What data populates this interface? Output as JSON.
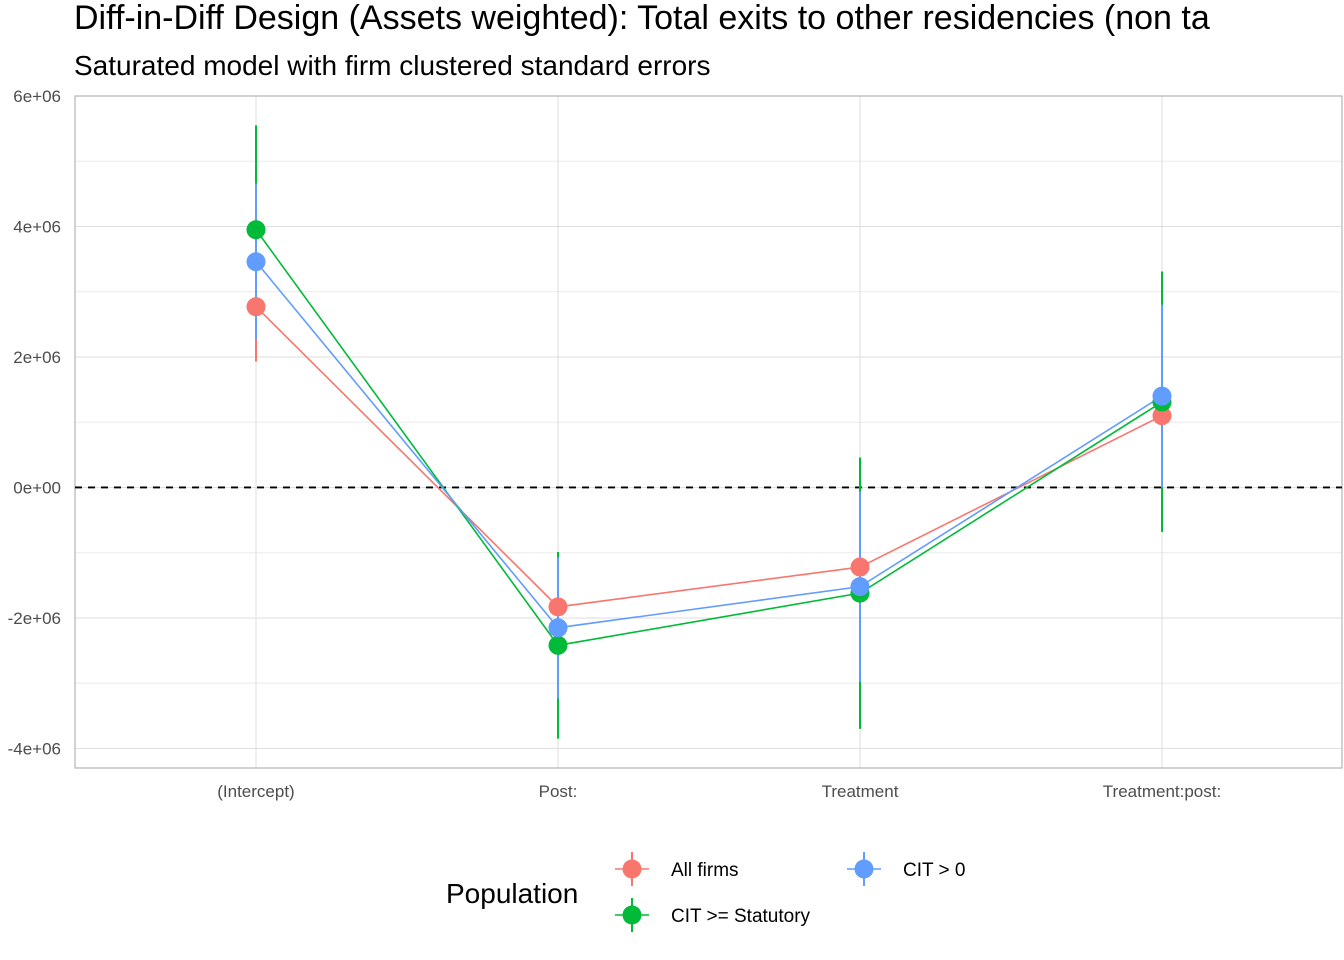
{
  "chart_data": {
    "type": "scatter",
    "title": "Diff-in-Diff Design (Assets weighted): Total exits to other residencies (non ta",
    "subtitle": "Saturated model with firm clustered standard errors",
    "xlabel": "",
    "ylabel": "",
    "categories": [
      "(Intercept)",
      "Post:",
      "Treatment",
      "Treatment:post:"
    ],
    "ylim": [
      -4300000,
      6000000
    ],
    "yticks": [
      -4000000,
      -2000000,
      0,
      2000000,
      4000000,
      6000000
    ],
    "ytick_labels": [
      "-4e+06",
      "-2e+06",
      "0e+00",
      "2e+06",
      "4e+06",
      "6e+06"
    ],
    "reference_line": 0,
    "grid": true,
    "legend": {
      "title": "Population",
      "placement": "bottom",
      "entries": [
        "All firms",
        "CIT > 0",
        "CIT >= Statutory"
      ]
    },
    "series": [
      {
        "name": "All firms",
        "color": "#F8766D",
        "values": [
          2770000,
          -1830000,
          -1220000,
          1100000
        ],
        "lower": [
          1930000,
          -2350000,
          -1700000,
          700000
        ],
        "upper": [
          3610000,
          -1310000,
          -740000,
          1500000
        ]
      },
      {
        "name": "CIT >= Statutory",
        "color": "#00BA38",
        "values": [
          3950000,
          -2420000,
          -1620000,
          1310000
        ],
        "lower": [
          2350000,
          -3850000,
          -3700000,
          -680000
        ],
        "upper": [
          5550000,
          -990000,
          460000,
          3310000
        ]
      },
      {
        "name": "CIT > 0",
        "color": "#619CFF",
        "values": [
          3460000,
          -2150000,
          -1520000,
          1400000
        ],
        "lower": [
          2260000,
          -3230000,
          -2980000,
          0
        ],
        "upper": [
          4660000,
          -1070000,
          -60000,
          2800000
        ]
      }
    ]
  }
}
